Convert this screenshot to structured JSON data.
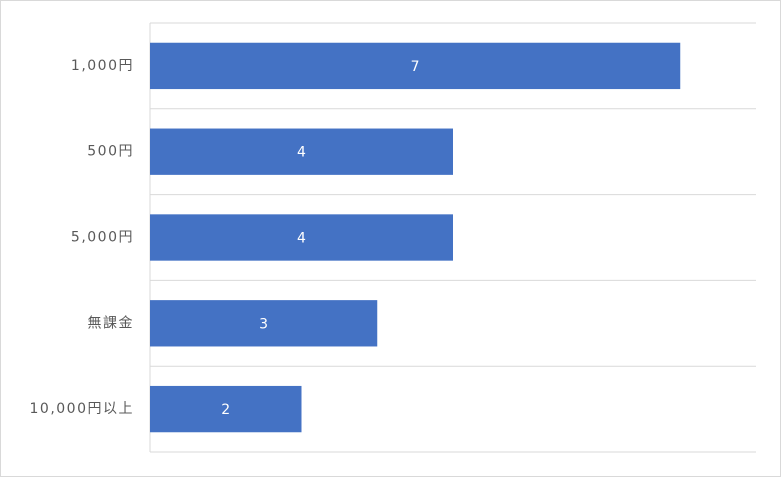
{
  "chart_data": {
    "type": "bar",
    "orientation": "horizontal",
    "categories": [
      "1,000円",
      "500円",
      "5,000円",
      "無課金",
      "10,000円以上"
    ],
    "values": [
      7,
      4,
      4,
      3,
      2
    ],
    "color": "#4472c4",
    "xlim": [
      0,
      8
    ],
    "grid": true
  }
}
